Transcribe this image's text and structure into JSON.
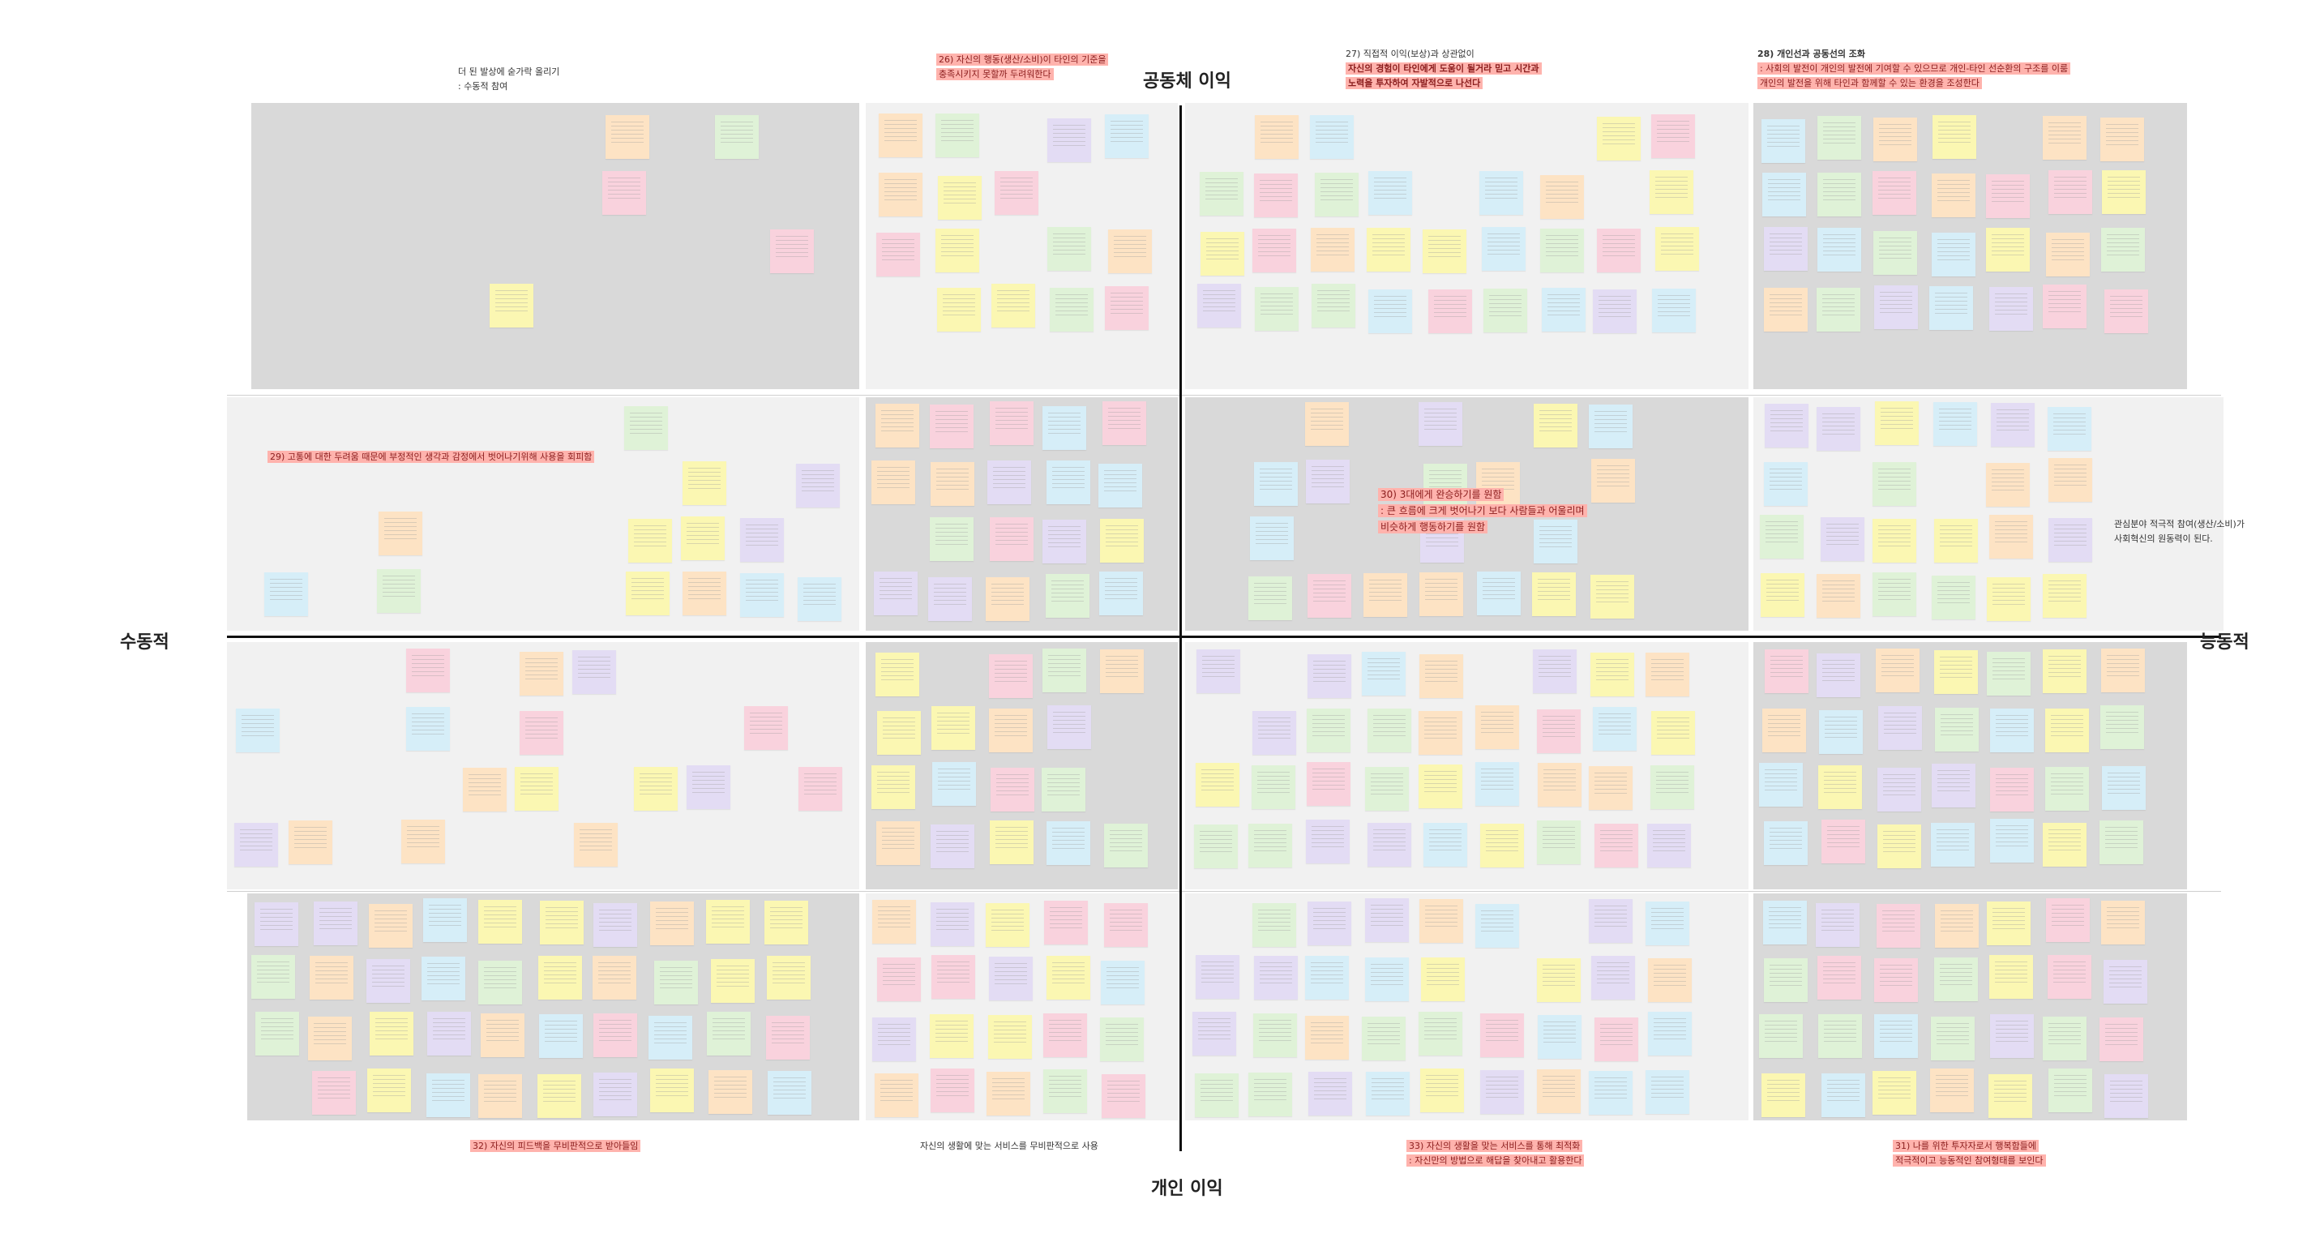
{
  "axes": {
    "top": "공동체 이익",
    "bottom": "개인 이익",
    "left": "수동적",
    "right": "능동적"
  },
  "notes": {
    "tl_header": {
      "line1": "더 된 발상에 숟가락 올리기",
      "line2": ": 수동적 참여"
    },
    "n26": {
      "line1": "26) 자신의 행동(생산/소비)이 타인의 기준을",
      "line2": "충족시키지 못할까 두려워한다"
    },
    "n27": {
      "line1": "27) 직접적 이익(보상)과 상관없이",
      "line2": "자신의 경험이 타인에게 도움이 될거라 믿고 시간과",
      "line3": "노력을 투자하여 자발적으로 나선다"
    },
    "n28": {
      "line1": "28) 개인선과 공동선의 조화",
      "line2": ": 사회의 발전이 개인의 발전에 기여할 수 있으므로 개인-타인 선순환의 구조를 이룸",
      "line3": "개인의 발전을 위해 타인과 함께할 수 있는 환경을 조성한다"
    },
    "n29": {
      "line1": "29) 고통에 대한 두려움 때문에 부정적인 생각과 감정에서 벗어나기위해 사용을 회피함"
    },
    "n30": {
      "line1": "30) 3대에게 완승하기를 원함",
      "line2": ": 큰 흐름에 크게 벗어나기 보다 사람들과 어울리며",
      "line3": "비슷하게 행동하기를 원함"
    },
    "right_mid": {
      "line1": "관심분야 적극적 참여(생산/소비)가",
      "line2": "사회혁신의 원동력이 된다."
    },
    "n32": {
      "line1": "32) 자신의 피드백을 무비판적으로 받아들임"
    },
    "bottom_center": {
      "line1": "자신의 생활에 맞는 서비스를 무비판적으로 사용"
    },
    "n33": {
      "line1": "33) 자신의 생활을 맞는 서비스를 통해 최적화",
      "line2": ": 자신만의 방법으로 해답을 찾아내고 활용한다"
    },
    "n31": {
      "line1": "31) 나를 위한 투자자로서 행복함들에",
      "line2": "적극적이고 능동적인 참여형태를 보인다"
    }
  },
  "sticky_palette": {
    "yellow": "#fbf7b2",
    "orange": "#fde3c4",
    "pink": "#f9d2dd",
    "lilac": "#e3dcf4",
    "blue": "#d6eef8",
    "green": "#dff2d7",
    "red_highlight": "#ffb3ad"
  }
}
